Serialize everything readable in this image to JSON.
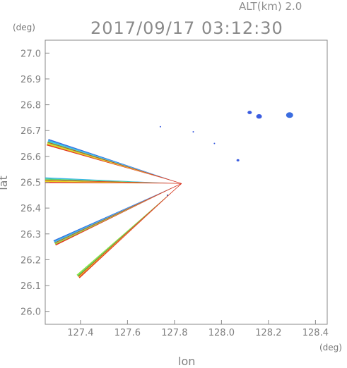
{
  "header": {
    "altitude_label": "ALT(km) 2.0",
    "datetime": "2017/09/17 03:12:30"
  },
  "chart_data": {
    "type": "scatter",
    "title": "2017/09/17 03:12:30",
    "xlabel": "lon",
    "ylabel": "lat",
    "x_unit": "(deg)",
    "y_unit": "(deg)",
    "xlim": [
      127.25,
      128.45
    ],
    "ylim": [
      25.95,
      27.05
    ],
    "x_ticks": [
      127.4,
      127.6,
      127.8,
      128.0,
      128.2,
      128.4
    ],
    "y_ticks": [
      26.0,
      26.1,
      26.2,
      26.3,
      26.4,
      26.5,
      26.6,
      26.7,
      26.8,
      26.9,
      27.0
    ],
    "grid": false,
    "radar_origin": {
      "lon": 127.83,
      "lat": 26.495
    },
    "beams": [
      {
        "from": [
          127.26,
          26.655
        ],
        "to": [
          127.83,
          26.495
        ],
        "colors": [
          "#2f6fe0",
          "#36b5ea",
          "#3fe0b0",
          "#8fe03c",
          "#e8d21c",
          "#e23a1e"
        ]
      },
      {
        "from": [
          127.25,
          26.508
        ],
        "to": [
          127.83,
          26.495
        ],
        "colors": [
          "#36b5ea",
          "#4ed27a",
          "#9ae23c",
          "#e8d21c",
          "#e23a1e"
        ]
      },
      {
        "from": [
          127.29,
          26.265
        ],
        "to": [
          127.83,
          26.495
        ],
        "colors": [
          "#2f6fe0",
          "#36b5ea",
          "#3fe0b0",
          "#8fe03c",
          "#e23a1e"
        ]
      },
      {
        "from": [
          127.39,
          26.135
        ],
        "to": [
          127.83,
          26.495
        ],
        "colors": [
          "#8fe03c",
          "#3fe06a",
          "#e8d21c",
          "#e23a1e"
        ]
      }
    ],
    "echoes": [
      {
        "lon": 128.12,
        "lat": 26.77,
        "size": 3,
        "color": "#3b5de0"
      },
      {
        "lon": 128.16,
        "lat": 26.755,
        "size": 4,
        "color": "#3b5de0"
      },
      {
        "lon": 128.29,
        "lat": 26.76,
        "size": 5,
        "color": "#3b6de0"
      },
      {
        "lon": 128.07,
        "lat": 26.585,
        "size": 2,
        "color": "#3b5de0"
      },
      {
        "lon": 127.97,
        "lat": 26.65,
        "size": 1,
        "color": "#3b5de0"
      },
      {
        "lon": 127.74,
        "lat": 26.715,
        "size": 1,
        "color": "#3b5de0"
      },
      {
        "lon": 127.88,
        "lat": 26.695,
        "size": 1,
        "color": "#3b5de0"
      },
      {
        "lon": 127.77,
        "lat": 26.45,
        "size": 1,
        "color": "#1f3fa0"
      }
    ]
  }
}
